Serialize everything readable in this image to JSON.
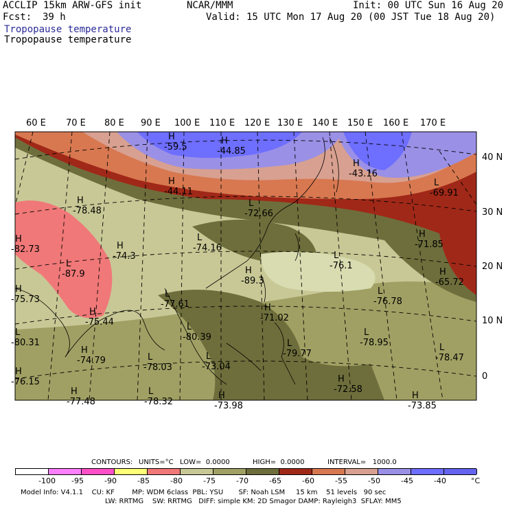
{
  "header": {
    "model": "ACCLIP 15km ARW-GFS init",
    "org": "NCAR/MMM",
    "init": "Init: 00 UTC Sun 16 Aug 20",
    "fcst_label": "Fcst:",
    "fcst_value": "39 h",
    "valid": "Valid: 15 UTC Mon 17 Aug 20 (00 JST Tue 18 Aug 20)",
    "field1": "Tropopause temperature",
    "field2": "Tropopause temperature"
  },
  "lon_labels": [
    "60 E",
    "70 E",
    "80 E",
    "90 E",
    "100 E",
    "110 E",
    "120 E",
    "130 E",
    "140 E",
    "150 E",
    "160 E",
    "170 E"
  ],
  "lat_labels": [
    "40 N",
    "30 N",
    "20 N",
    "10 N",
    "0"
  ],
  "extrema": [
    {
      "t": "H",
      "v": "-59.5"
    },
    {
      "t": "H",
      "v": "-44.85"
    },
    {
      "t": "H",
      "v": "-44.11"
    },
    {
      "t": "H",
      "v": "-43.16"
    },
    {
      "t": "L",
      "v": "-69.91"
    },
    {
      "t": "H",
      "v": "-78.48"
    },
    {
      "t": "L",
      "v": "-72.66"
    },
    {
      "t": "H",
      "v": "-82.73"
    },
    {
      "t": "H",
      "v": "-74.3"
    },
    {
      "t": "L",
      "v": "-74.16"
    },
    {
      "t": "L",
      "v": "-87.9"
    },
    {
      "t": "H",
      "v": "-89.3"
    },
    {
      "t": "L",
      "v": "-76.1"
    },
    {
      "t": "H",
      "v": "-71.85"
    },
    {
      "t": "H",
      "v": "-65.72"
    },
    {
      "t": "L",
      "v": "-76.78"
    },
    {
      "t": "H",
      "v": "-75.73"
    },
    {
      "t": "H",
      "v": "-75.44"
    },
    {
      "t": "L",
      "v": "-77.61"
    },
    {
      "t": "H",
      "v": "-71.02"
    },
    {
      "t": "L",
      "v": "-80.31"
    },
    {
      "t": "L",
      "v": "-80.39"
    },
    {
      "t": "L",
      "v": "-78.95"
    },
    {
      "t": "H",
      "v": "-74.79"
    },
    {
      "t": "L",
      "v": "-78.03"
    },
    {
      "t": "L",
      "v": "-79.77"
    },
    {
      "t": "L",
      "v": "-78.47"
    },
    {
      "t": "L",
      "v": "-73.04"
    },
    {
      "t": "H",
      "v": "-76.15"
    },
    {
      "t": "H",
      "v": "-72.58"
    },
    {
      "t": "H",
      "v": "-77.48"
    },
    {
      "t": "L",
      "v": "-78.32"
    },
    {
      "t": "H",
      "v": "-73.98"
    },
    {
      "t": "H",
      "v": "-73.85"
    }
  ],
  "contours": {
    "label": "CONTOURS:",
    "units": "UNITS=°C",
    "low": "LOW=  0.0000",
    "high": "HIGH=  0.0000",
    "interval": "INTERVAL=   1000.0"
  },
  "colorbar": {
    "colors": [
      "#ffffff",
      "#ff80ff",
      "#ff50c8",
      "#ffff78",
      "#f07878",
      "#c8c896",
      "#a0a064",
      "#6e6e3c",
      "#a02818",
      "#d87850",
      "#d8a090",
      "#9a90e6",
      "#6e6eff",
      "#6464f0"
    ],
    "labels": [
      "-100",
      "-95",
      "-90",
      "-85",
      "-80",
      "-75",
      "-70",
      "-65",
      "-60",
      "-55",
      "-50",
      "-45",
      "-40",
      "°C"
    ]
  },
  "model_info": {
    "line1": "Model Info: V4.1.1    CU: KF        MP: WDM 6class  PBL: YSU       SF: Noah LSM     15 km    51 levels   90 sec",
    "line2": "LW: RRTMG    SW: RRTMG   DIFF: simple KM: 2D Smagor DAMP: Rayleigh3  SFLAY: MM5"
  }
}
